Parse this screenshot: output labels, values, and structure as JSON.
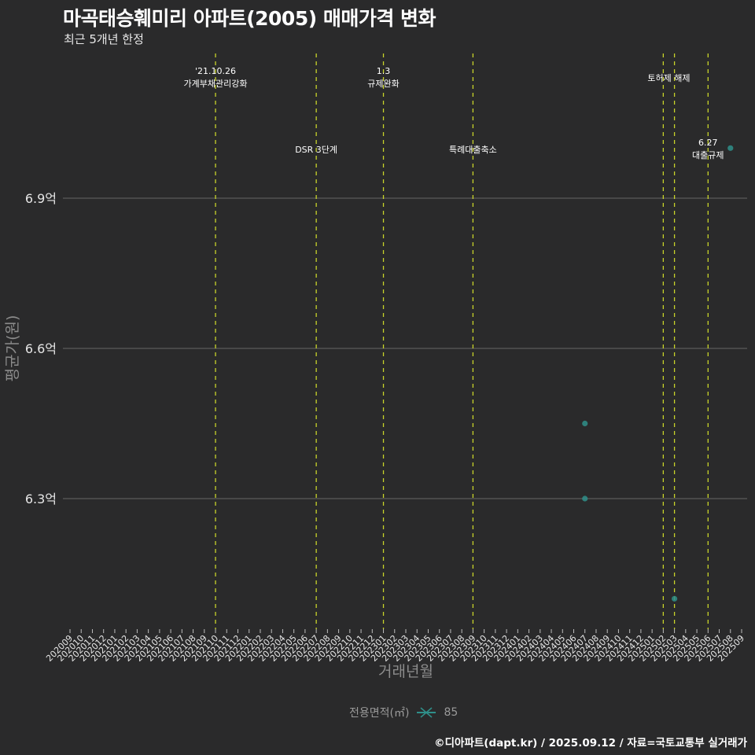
{
  "header": {
    "title": "마곡태승훼미리 아파트(2005) 매매가격 변화",
    "subtitle": "최근 5개년 한정"
  },
  "legend": {
    "title": "전용면적(㎡)",
    "item_label": "85",
    "item_color": "#2f8f8a"
  },
  "footer": {
    "credit": "©디아파트(dapt.kr) / 2025.09.12 / 자료=국토교통부 실거래가"
  },
  "colors": {
    "background": "#2a2a2b",
    "gridline": "#5a5a5a",
    "event_line": "#c8d42a",
    "point": "#2f8f8a"
  },
  "chart_data": {
    "type": "scatter",
    "title": "마곡태승훼미리 아파트(2005) 매매가격 변화",
    "subtitle": "최근 5개년 한정",
    "xlabel": "거래년월",
    "ylabel": "평균가(원)",
    "x_categories": [
      "202009",
      "202010",
      "202011",
      "202012",
      "202101",
      "202102",
      "202103",
      "202104",
      "202105",
      "202106",
      "202107",
      "202108",
      "202109",
      "202110",
      "202111",
      "202112",
      "202201",
      "202202",
      "202203",
      "202204",
      "202205",
      "202206",
      "202207",
      "202208",
      "202209",
      "202210",
      "202211",
      "202212",
      "202301",
      "202302",
      "202303",
      "202304",
      "202305",
      "202306",
      "202307",
      "202308",
      "202309",
      "202310",
      "202311",
      "202312",
      "202401",
      "202402",
      "202403",
      "202404",
      "202405",
      "202406",
      "202407",
      "202408",
      "202409",
      "202410",
      "202411",
      "202412",
      "202501",
      "202502",
      "202503",
      "202504",
      "202505",
      "202506",
      "202507",
      "202508",
      "202509"
    ],
    "y_ticks": [
      {
        "value": 6.3,
        "label": "6.3억"
      },
      {
        "value": 6.6,
        "label": "6.6억"
      },
      {
        "value": 6.9,
        "label": "6.9억"
      }
    ],
    "ylim": [
      6.05,
      7.1
    ],
    "grid": "horizontal major lines",
    "legend_position": "bottom",
    "series": [
      {
        "name": "85",
        "points": [
          {
            "x": "202407",
            "y": 6.45
          },
          {
            "x": "202407",
            "y": 6.3
          },
          {
            "x": "202503",
            "y": 6.1
          },
          {
            "x": "202508",
            "y": 7.0
          }
        ]
      }
    ],
    "events": [
      {
        "x": "202110",
        "lines": [
          "'21.10.26",
          "가계부채관리강화"
        ],
        "label_row": "top"
      },
      {
        "x": "202207",
        "lines": [
          "DSR 3단계"
        ],
        "label_row": "middle"
      },
      {
        "x": "202301",
        "lines": [
          "1.3",
          "규제완화"
        ],
        "label_row": "top"
      },
      {
        "x": "202309",
        "lines": [
          "특례대출축소"
        ],
        "label_row": "middle"
      },
      {
        "x": "202502",
        "lines": [],
        "label_row": "none"
      },
      {
        "x": "202503",
        "lines": [
          "토허제 해제"
        ],
        "label_row": "top-single",
        "label_x_center": "202502-202503"
      },
      {
        "x": "202506",
        "lines": [
          "6.27",
          "대출규제"
        ],
        "label_row": "middle"
      }
    ]
  }
}
